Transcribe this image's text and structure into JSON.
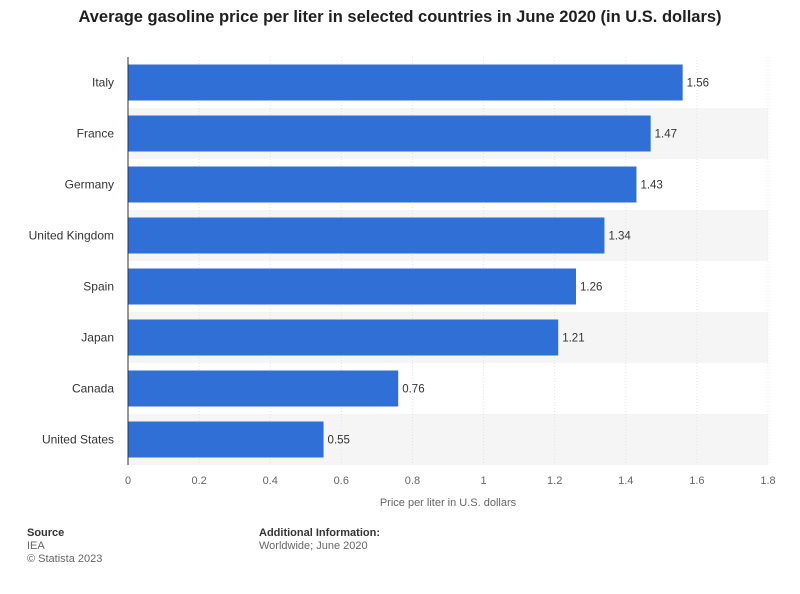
{
  "title": "Average gasoline price per liter in selected countries in June 2020 (in U.S. dollars)",
  "chart_data": {
    "type": "bar",
    "orientation": "horizontal",
    "categories": [
      "Italy",
      "France",
      "Germany",
      "United Kingdom",
      "Spain",
      "Japan",
      "Canada",
      "United States"
    ],
    "values": [
      1.56,
      1.47,
      1.43,
      1.34,
      1.26,
      1.21,
      0.76,
      0.55
    ],
    "xlabel": "Price per liter in U.S. dollars",
    "ylabel": "",
    "xlim": [
      0,
      1.8
    ],
    "xticks": [
      "0",
      "0.2",
      "0.4",
      "0.6",
      "0.8",
      "1",
      "1.2",
      "1.4",
      "1.6",
      "1.8"
    ],
    "grid": true,
    "bar_color": "#2f6fd6",
    "alt_row_color": "#f5f5f5"
  },
  "footer": {
    "source_heading": "Source",
    "source_lines": [
      "IEA",
      "© Statista 2023"
    ],
    "info_heading": "Additional Information:",
    "info_lines": [
      "Worldwide; June 2020"
    ]
  }
}
